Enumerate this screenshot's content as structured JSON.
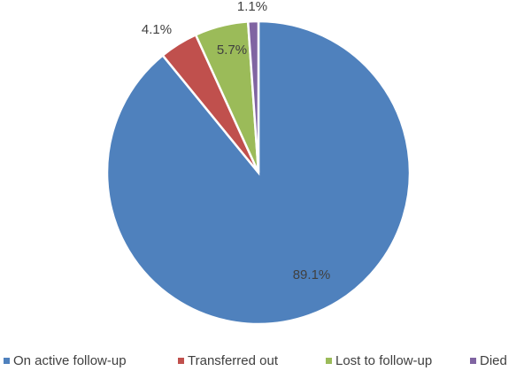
{
  "chart_data": {
    "type": "pie",
    "categories": [
      "On active follow-up",
      "Transferred out",
      "Lost to follow-up",
      "Died"
    ],
    "values": [
      89.1,
      4.1,
      5.7,
      1.1
    ],
    "value_labels": [
      "89.1%",
      "4.1%",
      "5.7%",
      "1.1%"
    ],
    "colors": [
      "#4f81bd",
      "#c0504d",
      "#9bbb59",
      "#8064a2"
    ],
    "legend": "bottom"
  }
}
